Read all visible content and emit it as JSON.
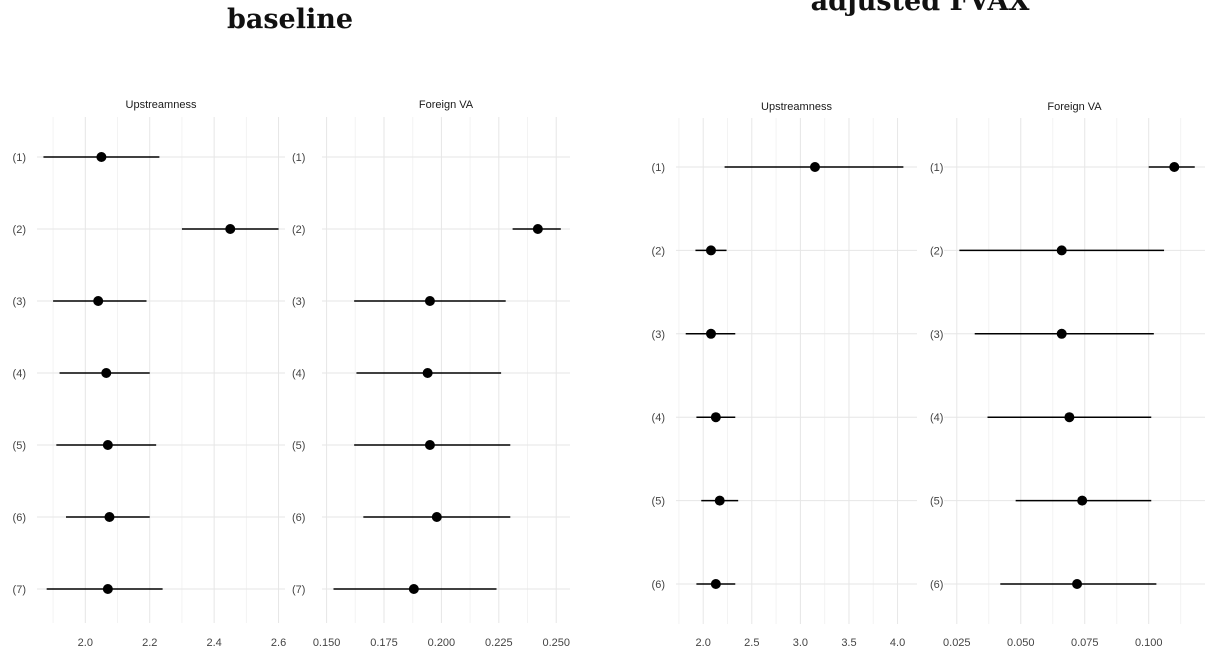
{
  "groups": [
    {
      "title": "baseline"
    },
    {
      "title": "adjusted FVAX"
    }
  ],
  "chart_data": [
    {
      "type": "scatter",
      "group": "baseline",
      "panel": "Upstreamness",
      "categories": [
        "(1)",
        "(2)",
        "(3)",
        "(4)",
        "(5)",
        "(6)",
        "(7)"
      ],
      "estimates": [
        2.05,
        2.45,
        2.04,
        2.065,
        2.07,
        2.075,
        2.07
      ],
      "ci_low": [
        1.87,
        2.3,
        1.9,
        1.92,
        1.91,
        1.94,
        1.88
      ],
      "ci_high": [
        2.23,
        2.6,
        2.19,
        2.2,
        2.22,
        2.2,
        2.24
      ],
      "xticks": [
        "2.0",
        "2.2",
        "2.4",
        "2.6"
      ],
      "xlim": [
        1.85,
        2.62
      ],
      "grid": true
    },
    {
      "type": "scatter",
      "group": "baseline",
      "panel": "Foreign VA",
      "categories": [
        "(1)",
        "(2)",
        "(3)",
        "(4)",
        "(5)",
        "(6)",
        "(7)"
      ],
      "estimates": [
        null,
        0.242,
        0.195,
        0.194,
        0.195,
        0.198,
        0.188
      ],
      "ci_low": [
        null,
        0.231,
        0.162,
        0.163,
        0.162,
        0.166,
        0.153
      ],
      "ci_high": [
        null,
        0.252,
        0.228,
        0.226,
        0.23,
        0.23,
        0.224
      ],
      "xticks": [
        "0.150",
        "0.175",
        "0.200",
        "0.225",
        "0.250"
      ],
      "xlim": [
        0.148,
        0.256
      ],
      "grid": true
    },
    {
      "type": "scatter",
      "group": "adjusted FVAX",
      "panel": "Upstreamness",
      "categories": [
        "(1)",
        "(2)",
        "(3)",
        "(4)",
        "(5)",
        "(6)"
      ],
      "estimates": [
        3.15,
        2.08,
        2.08,
        2.13,
        2.17,
        2.13
      ],
      "ci_low": [
        2.22,
        1.92,
        1.82,
        1.93,
        1.98,
        1.93
      ],
      "ci_high": [
        4.06,
        2.24,
        2.33,
        2.33,
        2.36,
        2.33
      ],
      "xticks": [
        "2.0",
        "2.5",
        "3.0",
        "3.5",
        "4.0"
      ],
      "xlim": [
        1.72,
        4.2
      ],
      "grid": true
    },
    {
      "type": "scatter",
      "group": "adjusted FVAX",
      "panel": "Foreign VA",
      "categories": [
        "(1)",
        "(2)",
        "(3)",
        "(4)",
        "(5)",
        "(6)"
      ],
      "estimates": [
        0.11,
        0.066,
        0.066,
        0.069,
        0.074,
        0.072
      ],
      "ci_low": [
        0.1,
        0.026,
        0.032,
        0.037,
        0.048,
        0.042
      ],
      "ci_high": [
        0.118,
        0.106,
        0.102,
        0.101,
        0.101,
        0.103
      ],
      "xticks": [
        "0.025",
        "0.050",
        "0.075",
        "0.100"
      ],
      "xlim": [
        0.02,
        0.122
      ],
      "grid": true
    }
  ]
}
